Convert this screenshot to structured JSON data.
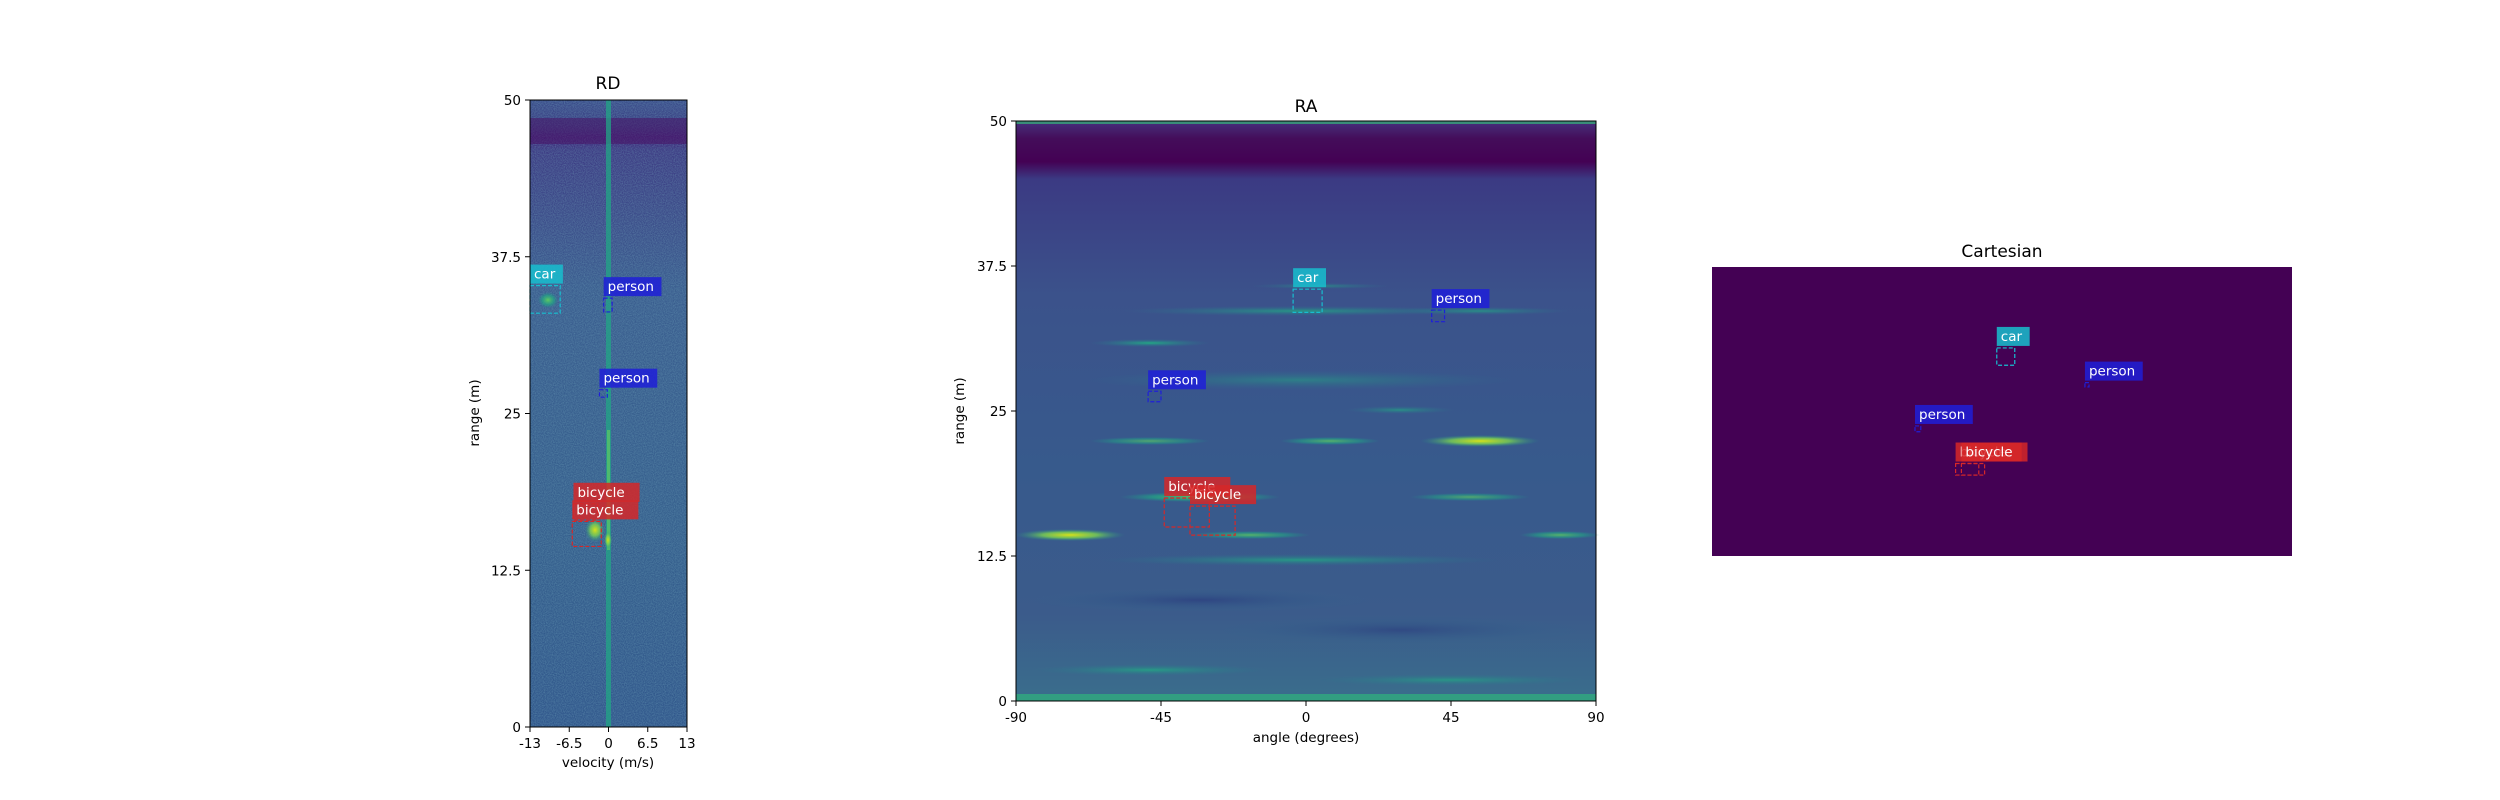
{
  "chart_data": [
    {
      "type": "heatmap",
      "title": "RD",
      "xlabel": "velocity (m/s)",
      "ylabel": "range (m)",
      "xlim": [
        -13,
        13
      ],
      "ylim": [
        0,
        50
      ],
      "x_ticks": [
        "-13",
        "-6.5",
        "0",
        "6.5",
        "13"
      ],
      "y_ticks": [
        "0",
        "12.5",
        "25",
        "37.5",
        "50"
      ],
      "colormap": "viridis",
      "detections": [
        {
          "label": "car",
          "color": "#17becf",
          "box": {
            "x": [
              -13.0,
              -8.0
            ],
            "y": [
              33.0,
              35.2
            ]
          }
        },
        {
          "label": "person",
          "color": "#1f1fd8",
          "box": {
            "x": [
              -0.8,
              0.6
            ],
            "y": [
              33.1,
              34.2
            ]
          }
        },
        {
          "label": "person",
          "color": "#1f1fd8",
          "box": {
            "x": [
              -1.5,
              -0.2
            ],
            "y": [
              26.3,
              26.9
            ]
          }
        },
        {
          "label": "bicycle",
          "color": "#d62728",
          "box": {
            "x": [
              -5.8,
              -1.8
            ],
            "y": [
              16.5,
              17.8
            ]
          }
        },
        {
          "label": "bicycle",
          "color": "#d62728",
          "box": {
            "x": [
              -6.0,
              -1.2
            ],
            "y": [
              14.4,
              16.4
            ]
          }
        }
      ]
    },
    {
      "type": "heatmap",
      "title": "RA",
      "xlabel": "angle (degrees)",
      "ylabel": "range (m)",
      "xlim": [
        -90,
        90
      ],
      "ylim": [
        0,
        50
      ],
      "x_ticks": [
        "-90",
        "-45",
        "0",
        "45",
        "90"
      ],
      "y_ticks": [
        "0",
        "12.5",
        "25",
        "37.5",
        "50"
      ],
      "colormap": "viridis",
      "detections": [
        {
          "label": "car",
          "color": "#17becf",
          "box": {
            "x": [
              -4,
              5
            ],
            "y": [
              33.5,
              35.5
            ]
          }
        },
        {
          "label": "person",
          "color": "#1f1fd8",
          "box": {
            "x": [
              39,
              43
            ],
            "y": [
              32.7,
              33.7
            ]
          }
        },
        {
          "label": "person",
          "color": "#1f1fd8",
          "box": {
            "x": [
              -49,
              -45
            ],
            "y": [
              25.8,
              26.7
            ]
          }
        },
        {
          "label": "bicycle",
          "color": "#d62728",
          "box": {
            "x": [
              -44,
              -30
            ],
            "y": [
              15.0,
              17.5
            ]
          }
        },
        {
          "label": "bicycle",
          "color": "#d62728",
          "box": {
            "x": [
              -36,
              -22
            ],
            "y": [
              14.3,
              16.8
            ]
          }
        }
      ]
    },
    {
      "type": "heatmap",
      "title": "Cartesian",
      "background": "#440154",
      "detections": [
        {
          "label": "car",
          "color": "#17becf",
          "box": {
            "x": [
              0.491,
              0.522
            ],
            "y": [
              0.66,
              0.72
            ]
          }
        },
        {
          "label": "person",
          "color": "#1f1fd8",
          "box": {
            "x": [
              0.643,
              0.65
            ],
            "y": [
              0.585,
              0.6
            ]
          }
        },
        {
          "label": "person",
          "color": "#1f1fd8",
          "box": {
            "x": [
              0.35,
              0.36
            ],
            "y": [
              0.43,
              0.45
            ]
          }
        },
        {
          "label": "bicycle",
          "color": "#d62728",
          "box": {
            "x": [
              0.42,
              0.46
            ],
            "y": [
              0.28,
              0.32
            ]
          }
        },
        {
          "label": "bicycle",
          "color": "#d62728",
          "box": {
            "x": [
              0.43,
              0.47
            ],
            "y": [
              0.28,
              0.32
            ]
          }
        }
      ]
    }
  ]
}
